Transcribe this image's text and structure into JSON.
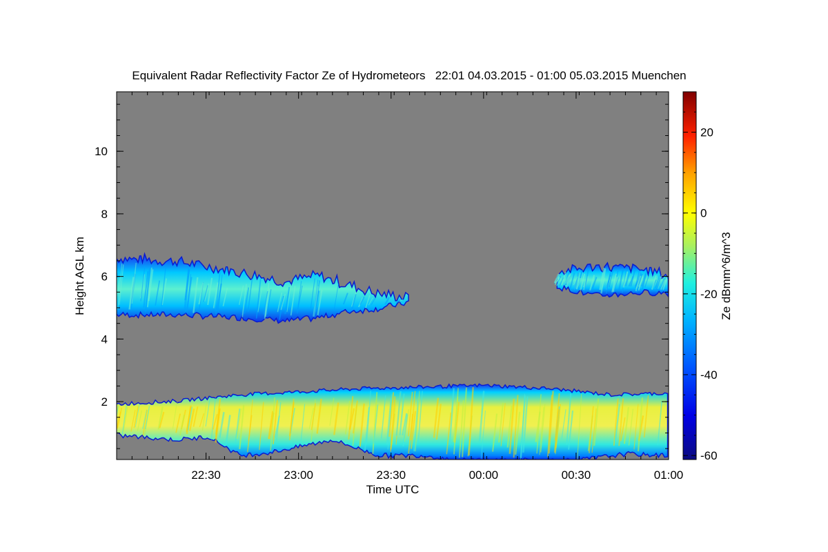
{
  "chart_data": {
    "type": "heatmap",
    "title": "Equivalent Radar Reflectivity Factor Ze of Hydrometeors   22:01 04.03.2015 - 01:00 05.03.2015 Muenchen",
    "xlabel": "Time UTC",
    "ylabel": "Height AGL km",
    "x_range_minutes": [
      0,
      179
    ],
    "x_ticks": [
      {
        "label": "22:30",
        "minutes": 29
      },
      {
        "label": "23:00",
        "minutes": 59
      },
      {
        "label": "23:30",
        "minutes": 89
      },
      {
        "label": "00:00",
        "minutes": 119
      },
      {
        "label": "00:30",
        "minutes": 149
      },
      {
        "label": "01:00",
        "minutes": 179
      }
    ],
    "ylim": [
      0.15,
      11.9
    ],
    "y_ticks": [
      2,
      4,
      6,
      8,
      10
    ],
    "colorbar": {
      "label": "Ze dBmm^6/m^3",
      "range": [
        -61,
        30
      ],
      "ticks": [
        -60,
        -40,
        -20,
        0,
        20
      ]
    },
    "background": "no-signal (grey)",
    "background_color": "#808080",
    "layers": [
      {
        "name": "upper-cloud-layer-1",
        "x_start_min": 0,
        "x_end_min": 95,
        "top_km": [
          [
            0,
            6.55
          ],
          [
            20,
            6.45
          ],
          [
            40,
            6.1
          ],
          [
            55,
            5.8
          ],
          [
            65,
            6.0
          ],
          [
            75,
            5.7
          ],
          [
            85,
            5.4
          ],
          [
            95,
            5.3
          ]
        ],
        "bottom_km": [
          [
            0,
            4.8
          ],
          [
            20,
            4.8
          ],
          [
            40,
            4.7
          ],
          [
            55,
            4.6
          ],
          [
            65,
            4.7
          ],
          [
            75,
            4.9
          ],
          [
            85,
            5.0
          ],
          [
            95,
            5.2
          ]
        ],
        "ze_dbz_core": -28,
        "ze_dbz_edge": -50
      },
      {
        "name": "upper-cloud-layer-2",
        "x_start_min": 143,
        "x_end_min": 179,
        "top_km": [
          [
            143,
            6.1
          ],
          [
            155,
            6.3
          ],
          [
            170,
            6.2
          ],
          [
            179,
            6.0
          ]
        ],
        "bottom_km": [
          [
            143,
            5.7
          ],
          [
            155,
            5.4
          ],
          [
            170,
            5.5
          ],
          [
            179,
            5.5
          ]
        ],
        "ze_dbz_core": -25,
        "ze_dbz_edge": -48
      },
      {
        "name": "lower-precipitation-layer",
        "x_start_min": 0,
        "x_end_min": 179,
        "top_km": [
          [
            0,
            1.9
          ],
          [
            20,
            2.0
          ],
          [
            40,
            2.2
          ],
          [
            60,
            2.3
          ],
          [
            80,
            2.4
          ],
          [
            100,
            2.45
          ],
          [
            120,
            2.5
          ],
          [
            140,
            2.4
          ],
          [
            160,
            2.2
          ],
          [
            179,
            2.25
          ]
        ],
        "bottom_km": [
          [
            0,
            0.95
          ],
          [
            20,
            0.8
          ],
          [
            30,
            0.9
          ],
          [
            40,
            0.3
          ],
          [
            50,
            0.4
          ],
          [
            70,
            0.8
          ],
          [
            85,
            0.3
          ],
          [
            100,
            0.3
          ],
          [
            110,
            0.15
          ],
          [
            150,
            0.15
          ],
          [
            165,
            0.35
          ],
          [
            179,
            0.3
          ]
        ],
        "ze_dbz_core": -3,
        "ze_dbz_edge": -45
      }
    ]
  }
}
